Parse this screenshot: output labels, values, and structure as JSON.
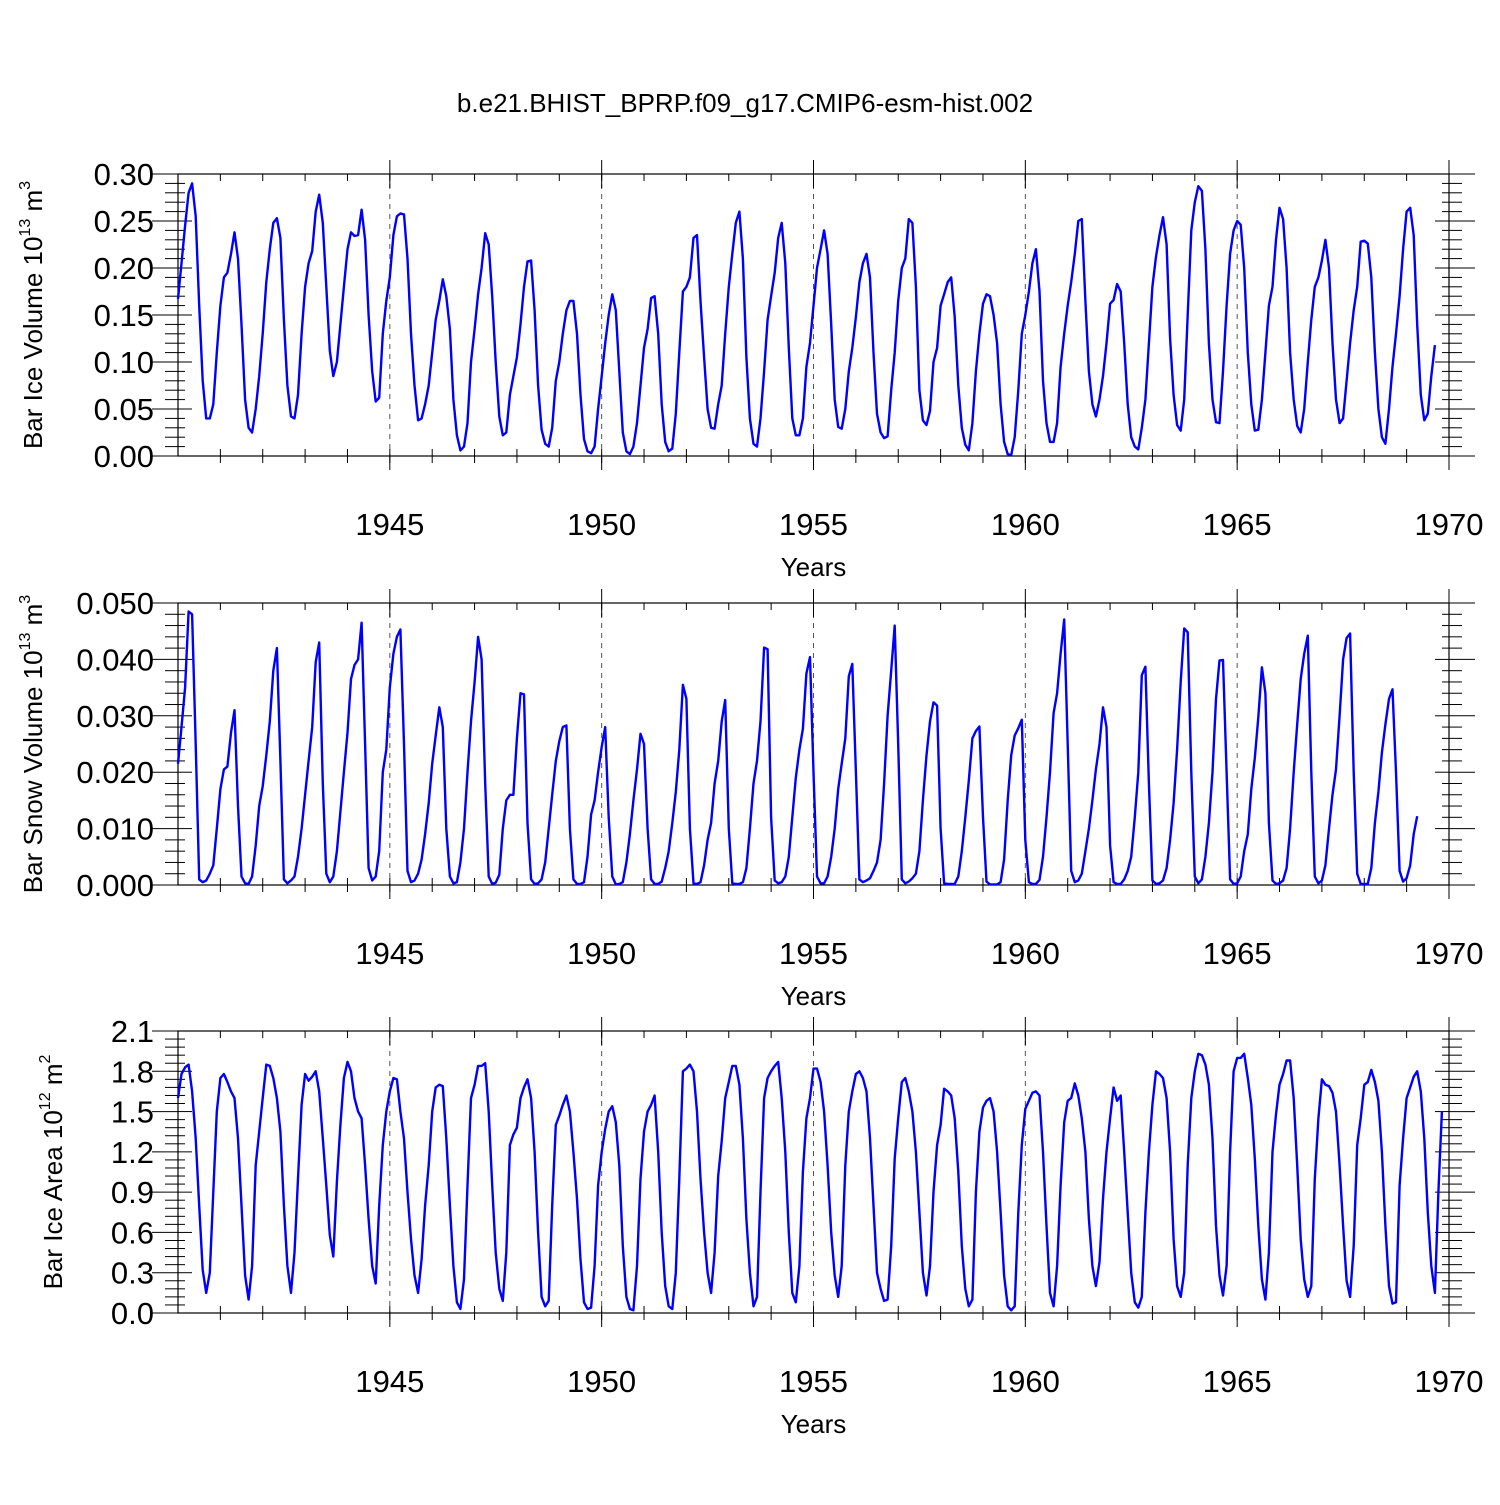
{
  "title": "b.e21.BHIST_BPRP.f09_g17.CMIP6-esm-hist.002",
  "colors": {
    "series": "#0000ff",
    "frame": "#000000",
    "gridline": "#555555"
  },
  "chart_data": [
    {
      "type": "line",
      "name": "ice-volume",
      "title": "b.e21.BHIST_BPRP.f09_g17.CMIP6-esm-hist.002",
      "xlabel": "Years",
      "ylabel": {
        "base": "Bar Ice Volume 10",
        "exp": "13",
        "unit": " m",
        "unitexp": "3"
      },
      "xlim": [
        1940,
        1970
      ],
      "ylim": [
        0,
        0.3
      ],
      "xticks": [
        1945,
        1950,
        1955,
        1960,
        1965,
        1970
      ],
      "xtick_labels": [
        "1945",
        "1950",
        "1955",
        "1960",
        "1965",
        "1970"
      ],
      "yticks": [
        0,
        0.05,
        0.1,
        0.15,
        0.2,
        0.25,
        0.3
      ],
      "ytick_labels": [
        "0.00",
        "0.05",
        "0.10",
        "0.15",
        "0.20",
        "0.25",
        "0.30"
      ],
      "vlines": [
        1945,
        1950,
        1955,
        1960,
        1965
      ],
      "x_start": 1940.0,
      "x_step": 0.0833333,
      "y": [
        0.167,
        0.205,
        0.245,
        0.28,
        0.29,
        0.255,
        0.16,
        0.08,
        0.04,
        0.04,
        0.055,
        0.11,
        0.16,
        0.19,
        0.195,
        0.215,
        0.238,
        0.21,
        0.14,
        0.06,
        0.03,
        0.025,
        0.05,
        0.085,
        0.13,
        0.185,
        0.22,
        0.248,
        0.253,
        0.232,
        0.145,
        0.075,
        0.042,
        0.04,
        0.065,
        0.13,
        0.18,
        0.205,
        0.218,
        0.26,
        0.278,
        0.248,
        0.18,
        0.112,
        0.085,
        0.1,
        0.14,
        0.18,
        0.22,
        0.238,
        0.234,
        0.235,
        0.262,
        0.23,
        0.15,
        0.09,
        0.058,
        0.062,
        0.13,
        0.165,
        0.19,
        0.235,
        0.255,
        0.258,
        0.257,
        0.21,
        0.13,
        0.075,
        0.038,
        0.04,
        0.055,
        0.075,
        0.11,
        0.145,
        0.165,
        0.188,
        0.17,
        0.135,
        0.06,
        0.022,
        0.006,
        0.01,
        0.035,
        0.1,
        0.135,
        0.172,
        0.2,
        0.237,
        0.225,
        0.17,
        0.1,
        0.042,
        0.022,
        0.025,
        0.065,
        0.085,
        0.105,
        0.14,
        0.18,
        0.207,
        0.208,
        0.155,
        0.075,
        0.028,
        0.013,
        0.01,
        0.03,
        0.08,
        0.1,
        0.13,
        0.155,
        0.165,
        0.165,
        0.13,
        0.065,
        0.018,
        0.005,
        0.003,
        0.01,
        0.05,
        0.085,
        0.12,
        0.15,
        0.172,
        0.155,
        0.09,
        0.025,
        0.005,
        0.002,
        0.01,
        0.035,
        0.075,
        0.115,
        0.135,
        0.168,
        0.17,
        0.13,
        0.055,
        0.015,
        0.005,
        0.008,
        0.045,
        0.11,
        0.175,
        0.18,
        0.19,
        0.232,
        0.235,
        0.165,
        0.105,
        0.05,
        0.03,
        0.029,
        0.055,
        0.075,
        0.13,
        0.18,
        0.215,
        0.248,
        0.26,
        0.21,
        0.105,
        0.04,
        0.013,
        0.01,
        0.04,
        0.09,
        0.145,
        0.17,
        0.195,
        0.232,
        0.248,
        0.205,
        0.115,
        0.04,
        0.022,
        0.022,
        0.04,
        0.095,
        0.12,
        0.16,
        0.2,
        0.22,
        0.24,
        0.215,
        0.14,
        0.06,
        0.031,
        0.029,
        0.05,
        0.09,
        0.115,
        0.148,
        0.185,
        0.205,
        0.215,
        0.19,
        0.11,
        0.045,
        0.025,
        0.019,
        0.021,
        0.07,
        0.11,
        0.165,
        0.2,
        0.21,
        0.252,
        0.248,
        0.18,
        0.07,
        0.038,
        0.033,
        0.048,
        0.1,
        0.115,
        0.16,
        0.172,
        0.185,
        0.19,
        0.148,
        0.075,
        0.03,
        0.012,
        0.006,
        0.035,
        0.09,
        0.13,
        0.162,
        0.172,
        0.17,
        0.15,
        0.12,
        0.055,
        0.015,
        0.002,
        0.001,
        0.02,
        0.07,
        0.13,
        0.15,
        0.175,
        0.205,
        0.22,
        0.175,
        0.08,
        0.035,
        0.015,
        0.015,
        0.035,
        0.095,
        0.13,
        0.16,
        0.185,
        0.215,
        0.25,
        0.252,
        0.165,
        0.09,
        0.055,
        0.042,
        0.06,
        0.085,
        0.12,
        0.162,
        0.166,
        0.183,
        0.175,
        0.12,
        0.055,
        0.02,
        0.01,
        0.007,
        0.03,
        0.06,
        0.12,
        0.18,
        0.212,
        0.235,
        0.254,
        0.225,
        0.125,
        0.065,
        0.033,
        0.027,
        0.06,
        0.15,
        0.24,
        0.27,
        0.287,
        0.282,
        0.22,
        0.12,
        0.06,
        0.036,
        0.035,
        0.09,
        0.16,
        0.215,
        0.24,
        0.25,
        0.246,
        0.2,
        0.11,
        0.055,
        0.027,
        0.028,
        0.06,
        0.11,
        0.16,
        0.18,
        0.23,
        0.264,
        0.252,
        0.2,
        0.11,
        0.06,
        0.032,
        0.025,
        0.05,
        0.1,
        0.145,
        0.18,
        0.19,
        0.208,
        0.23,
        0.2,
        0.12,
        0.06,
        0.035,
        0.04,
        0.08,
        0.12,
        0.155,
        0.18,
        0.228,
        0.229,
        0.226,
        0.19,
        0.11,
        0.05,
        0.02,
        0.013,
        0.05,
        0.095,
        0.13,
        0.17,
        0.22,
        0.26,
        0.264,
        0.235,
        0.14,
        0.065,
        0.038,
        0.045,
        0.085,
        0.118
      ]
    },
    {
      "type": "line",
      "name": "snow-volume",
      "xlabel": "Years",
      "ylabel": {
        "base": "Bar Snow Volume 10",
        "exp": "13",
        "unit": " m",
        "unitexp": "3"
      },
      "xlim": [
        1940,
        1970
      ],
      "ylim": [
        0,
        0.05
      ],
      "xticks": [
        1945,
        1950,
        1955,
        1960,
        1965,
        1970
      ],
      "xtick_labels": [
        "1945",
        "1950",
        "1955",
        "1960",
        "1965",
        "1970"
      ],
      "yticks": [
        0,
        0.01,
        0.02,
        0.03,
        0.04,
        0.05
      ],
      "ytick_labels": [
        "0.000",
        "0.010",
        "0.020",
        "0.030",
        "0.040",
        "0.050"
      ],
      "vlines": [
        1945,
        1950,
        1955,
        1960,
        1965
      ],
      "x_start": 1940.0,
      "x_step": 0.0833333,
      "y": [
        0.0215,
        0.028,
        0.035,
        0.0485,
        0.048,
        0.025,
        0.001,
        0.0005,
        0.0008,
        0.002,
        0.0035,
        0.01,
        0.017,
        0.0205,
        0.021,
        0.027,
        0.031,
        0.014,
        0.0015,
        0.0003,
        0.0002,
        0.0015,
        0.007,
        0.014,
        0.0175,
        0.023,
        0.029,
        0.038,
        0.042,
        0.022,
        0.001,
        0.0003,
        0.0008,
        0.0015,
        0.005,
        0.01,
        0.016,
        0.022,
        0.028,
        0.0395,
        0.043,
        0.018,
        0.002,
        0.0005,
        0.0015,
        0.006,
        0.013,
        0.02,
        0.027,
        0.0365,
        0.039,
        0.04,
        0.0465,
        0.025,
        0.003,
        0.0008,
        0.0015,
        0.006,
        0.02,
        0.024,
        0.035,
        0.041,
        0.044,
        0.0453,
        0.025,
        0.0025,
        0.0005,
        0.0008,
        0.002,
        0.0045,
        0.009,
        0.0145,
        0.0215,
        0.0265,
        0.0315,
        0.028,
        0.01,
        0.0015,
        0.0003,
        0.0005,
        0.004,
        0.01,
        0.02,
        0.029,
        0.036,
        0.044,
        0.04,
        0.018,
        0.0015,
        0.0002,
        0.0004,
        0.0018,
        0.01,
        0.015,
        0.016,
        0.016,
        0.026,
        0.034,
        0.0338,
        0.011,
        0.001,
        0.0002,
        0.0003,
        0.001,
        0.004,
        0.01,
        0.016,
        0.022,
        0.0255,
        0.028,
        0.0283,
        0.01,
        0.001,
        0.0002,
        0.0002,
        0.0005,
        0.005,
        0.0125,
        0.015,
        0.02,
        0.0245,
        0.028,
        0.012,
        0.0015,
        0.0001,
        0.0002,
        0.0005,
        0.004,
        0.009,
        0.015,
        0.0205,
        0.0268,
        0.025,
        0.01,
        0.001,
        0.0002,
        0.0002,
        0.0006,
        0.003,
        0.006,
        0.011,
        0.0165,
        0.024,
        0.0355,
        0.033,
        0.01,
        0.0003,
        0.0002,
        0.0005,
        0.0035,
        0.008,
        0.011,
        0.018,
        0.022,
        0.029,
        0.0328,
        0.01,
        0.0003,
        0.0002,
        0.0002,
        0.0005,
        0.003,
        0.01,
        0.018,
        0.022,
        0.029,
        0.0421,
        0.0418,
        0.012,
        0.0008,
        0.0003,
        0.0005,
        0.0015,
        0.005,
        0.012,
        0.019,
        0.024,
        0.0277,
        0.0375,
        0.0404,
        0.02,
        0.0015,
        0.0003,
        0.0003,
        0.0015,
        0.005,
        0.01,
        0.017,
        0.0215,
        0.026,
        0.037,
        0.0392,
        0.02,
        0.001,
        0.0005,
        0.0008,
        0.0012,
        0.0025,
        0.004,
        0.008,
        0.018,
        0.03,
        0.038,
        0.046,
        0.025,
        0.001,
        0.0003,
        0.0006,
        0.0012,
        0.002,
        0.006,
        0.015,
        0.023,
        0.029,
        0.0324,
        0.0318,
        0.01,
        0.0003,
        0.0002,
        0.0002,
        0.0002,
        0.0015,
        0.006,
        0.012,
        0.0185,
        0.026,
        0.0273,
        0.0281,
        0.012,
        0.0006,
        0.0001,
        0.0001,
        0.0001,
        0.0005,
        0.0045,
        0.015,
        0.023,
        0.0265,
        0.0278,
        0.0293,
        0.008,
        0.0005,
        0.0002,
        0.0002,
        0.0009,
        0.005,
        0.012,
        0.02,
        0.0305,
        0.034,
        0.041,
        0.0471,
        0.025,
        0.0025,
        0.0005,
        0.0008,
        0.002,
        0.006,
        0.01,
        0.015,
        0.0205,
        0.025,
        0.0315,
        0.028,
        0.007,
        0.0005,
        0.0002,
        0.0002,
        0.001,
        0.0025,
        0.005,
        0.012,
        0.02,
        0.0372,
        0.0387,
        0.018,
        0.0008,
        0.0002,
        0.0003,
        0.0008,
        0.003,
        0.008,
        0.0145,
        0.024,
        0.036,
        0.0455,
        0.0448,
        0.02,
        0.0015,
        0.0003,
        0.001,
        0.005,
        0.011,
        0.02,
        0.033,
        0.0398,
        0.0399,
        0.02,
        0.001,
        0.0002,
        0.0003,
        0.0015,
        0.006,
        0.009,
        0.017,
        0.0225,
        0.0297,
        0.0386,
        0.034,
        0.011,
        0.0008,
        0.0002,
        0.0003,
        0.0008,
        0.003,
        0.01,
        0.02,
        0.0285,
        0.0365,
        0.041,
        0.0442,
        0.02,
        0.0015,
        0.0003,
        0.0008,
        0.0035,
        0.01,
        0.016,
        0.0205,
        0.03,
        0.04,
        0.0438,
        0.0446,
        0.02,
        0.002,
        0.0002,
        0.0002,
        0.0002,
        0.003,
        0.011,
        0.0165,
        0.0235,
        0.0285,
        0.033,
        0.0347,
        0.02,
        0.0025,
        0.0006,
        0.0012,
        0.0035,
        0.009,
        0.0122
      ]
    },
    {
      "type": "line",
      "name": "ice-area",
      "xlabel": "Years",
      "ylabel": {
        "base": "Bar Ice Area 10",
        "exp": "12",
        "unit": " m",
        "unitexp": "2"
      },
      "xlim": [
        1940,
        1970
      ],
      "ylim": [
        0,
        2.1
      ],
      "xticks": [
        1945,
        1950,
        1955,
        1960,
        1965,
        1970
      ],
      "xtick_labels": [
        "1945",
        "1950",
        "1955",
        "1960",
        "1965",
        "1970"
      ],
      "yticks": [
        0,
        0.3,
        0.6,
        0.9,
        1.2,
        1.5,
        1.8,
        2.1
      ],
      "ytick_labels": [
        "0.0",
        "0.3",
        "0.6",
        "0.9",
        "1.2",
        "1.5",
        "1.8",
        "2.1"
      ],
      "vlines": [
        1945,
        1950,
        1955,
        1960
      ],
      "x_start": 1940.0,
      "x_step": 0.0833333,
      "y": [
        1.6,
        1.78,
        1.83,
        1.85,
        1.65,
        1.3,
        0.8,
        0.32,
        0.15,
        0.3,
        0.9,
        1.5,
        1.75,
        1.78,
        1.72,
        1.65,
        1.6,
        1.3,
        0.8,
        0.28,
        0.1,
        0.35,
        1.1,
        1.35,
        1.6,
        1.85,
        1.84,
        1.75,
        1.6,
        1.35,
        0.8,
        0.35,
        0.15,
        0.45,
        1.0,
        1.55,
        1.78,
        1.73,
        1.76,
        1.8,
        1.65,
        1.3,
        0.95,
        0.58,
        0.42,
        0.98,
        1.4,
        1.75,
        1.87,
        1.8,
        1.6,
        1.5,
        1.45,
        1.1,
        0.7,
        0.35,
        0.22,
        0.8,
        1.25,
        1.5,
        1.65,
        1.75,
        1.74,
        1.5,
        1.3,
        0.9,
        0.55,
        0.28,
        0.15,
        0.4,
        0.8,
        1.1,
        1.5,
        1.68,
        1.7,
        1.69,
        1.3,
        0.8,
        0.35,
        0.08,
        0.03,
        0.25,
        0.95,
        1.6,
        1.7,
        1.84,
        1.84,
        1.86,
        1.5,
        0.95,
        0.45,
        0.18,
        0.09,
        0.45,
        1.25,
        1.33,
        1.38,
        1.6,
        1.68,
        1.74,
        1.6,
        1.2,
        0.6,
        0.12,
        0.05,
        0.09,
        0.8,
        1.4,
        1.47,
        1.55,
        1.62,
        1.5,
        1.2,
        0.85,
        0.4,
        0.08,
        0.03,
        0.04,
        0.35,
        0.95,
        1.2,
        1.37,
        1.5,
        1.54,
        1.42,
        1.1,
        0.5,
        0.12,
        0.03,
        0.02,
        0.35,
        1.0,
        1.35,
        1.5,
        1.55,
        1.62,
        1.2,
        0.6,
        0.2,
        0.05,
        0.03,
        0.3,
        1.0,
        1.8,
        1.82,
        1.85,
        1.8,
        1.5,
        1.0,
        0.6,
        0.3,
        0.15,
        0.45,
        1.02,
        1.28,
        1.6,
        1.72,
        1.84,
        1.84,
        1.7,
        1.3,
        0.7,
        0.3,
        0.05,
        0.12,
        0.9,
        1.6,
        1.75,
        1.8,
        1.84,
        1.87,
        1.6,
        1.2,
        0.6,
        0.15,
        0.08,
        0.35,
        1.05,
        1.45,
        1.6,
        1.82,
        1.82,
        1.72,
        1.5,
        1.1,
        0.6,
        0.28,
        0.12,
        0.35,
        1.1,
        1.5,
        1.65,
        1.78,
        1.8,
        1.75,
        1.65,
        1.3,
        0.8,
        0.3,
        0.18,
        0.09,
        0.1,
        0.5,
        1.15,
        1.45,
        1.72,
        1.75,
        1.65,
        1.5,
        1.2,
        0.75,
        0.3,
        0.13,
        0.35,
        0.9,
        1.25,
        1.4,
        1.67,
        1.65,
        1.62,
        1.45,
        1.05,
        0.5,
        0.18,
        0.05,
        0.1,
        0.9,
        1.35,
        1.53,
        1.58,
        1.6,
        1.5,
        1.2,
        0.75,
        0.28,
        0.05,
        0.02,
        0.05,
        0.75,
        1.25,
        1.52,
        1.58,
        1.64,
        1.65,
        1.62,
        1.2,
        0.65,
        0.15,
        0.05,
        0.35,
        0.95,
        1.42,
        1.58,
        1.6,
        1.71,
        1.62,
        1.45,
        1.2,
        0.7,
        0.35,
        0.2,
        0.38,
        0.85,
        1.2,
        1.45,
        1.68,
        1.58,
        1.62,
        1.2,
        0.75,
        0.3,
        0.08,
        0.04,
        0.12,
        0.75,
        1.2,
        1.55,
        1.8,
        1.78,
        1.75,
        1.6,
        1.2,
        0.55,
        0.2,
        0.12,
        0.3,
        1.1,
        1.6,
        1.8,
        1.93,
        1.92,
        1.85,
        1.7,
        1.3,
        0.65,
        0.28,
        0.13,
        0.35,
        1.2,
        1.8,
        1.9,
        1.9,
        1.93,
        1.75,
        1.55,
        1.15,
        0.65,
        0.25,
        0.1,
        0.45,
        1.2,
        1.48,
        1.7,
        1.78,
        1.88,
        1.88,
        1.6,
        1.1,
        0.55,
        0.25,
        0.12,
        0.2,
        1.0,
        1.45,
        1.74,
        1.7,
        1.69,
        1.64,
        1.5,
        1.1,
        0.65,
        0.24,
        0.12,
        0.5,
        1.25,
        1.45,
        1.7,
        1.72,
        1.81,
        1.72,
        1.58,
        1.2,
        0.65,
        0.2,
        0.07,
        0.08,
        0.95,
        1.3,
        1.6,
        1.68,
        1.76,
        1.8,
        1.65,
        1.3,
        0.75,
        0.35,
        0.15,
        0.9,
        1.5
      ]
    }
  ]
}
